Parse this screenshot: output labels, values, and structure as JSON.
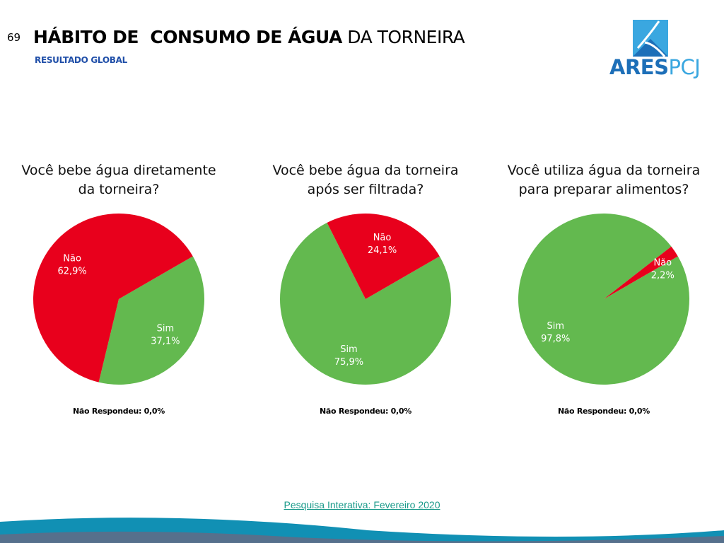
{
  "header": {
    "slide_number": "69",
    "title_bold": "HÁBITO DE  CONSUMO DE ÁGUA",
    "title_regular": " DA TORNEIRA",
    "subtitle": "RESULTADO GLOBAL"
  },
  "logo": {
    "text_bold": "ARES",
    "text_regular": "PCJ",
    "icon": "arespcj-logo-icon",
    "colors": {
      "dark_blue": "#1d6fb8",
      "light_blue": "#3aa7e0"
    }
  },
  "colors": {
    "sim": "#63b94f",
    "nao": "#e8001c"
  },
  "chart_data": [
    {
      "type": "pie",
      "title": "Você bebe água diretamente da torneira?",
      "title_lines": [
        "Você bebe água diretamente",
        "da torneira?"
      ],
      "slices": [
        {
          "label": "Sim",
          "value": 37.1,
          "value_label": "37,1%"
        },
        {
          "label": "Não",
          "value": 62.9,
          "value_label": "62,9%"
        }
      ],
      "note": "Não Respondeu: 0,0%"
    },
    {
      "type": "pie",
      "title": "Você bebe água da torneira após ser filtrada?",
      "title_lines": [
        "Você bebe água da torneira",
        "após ser filtrada?"
      ],
      "slices": [
        {
          "label": "Sim",
          "value": 75.9,
          "value_label": "75,9%"
        },
        {
          "label": "Não",
          "value": 24.1,
          "value_label": "24,1%"
        }
      ],
      "note": "Não Respondeu: 0,0%"
    },
    {
      "type": "pie",
      "title": "Você utiliza água da torneira para preparar alimentos?",
      "title_lines": [
        "Você utiliza água da torneira",
        "para preparar alimentos?"
      ],
      "slices": [
        {
          "label": "Sim",
          "value": 97.8,
          "value_label": "97,8%"
        },
        {
          "label": "Não",
          "value": 2.2,
          "value_label": "2,2%"
        }
      ],
      "note": "Não Respondeu: 0,0%"
    }
  ],
  "footer": {
    "source_link": "Pesquisa Interativa: Fevereiro 2020"
  }
}
